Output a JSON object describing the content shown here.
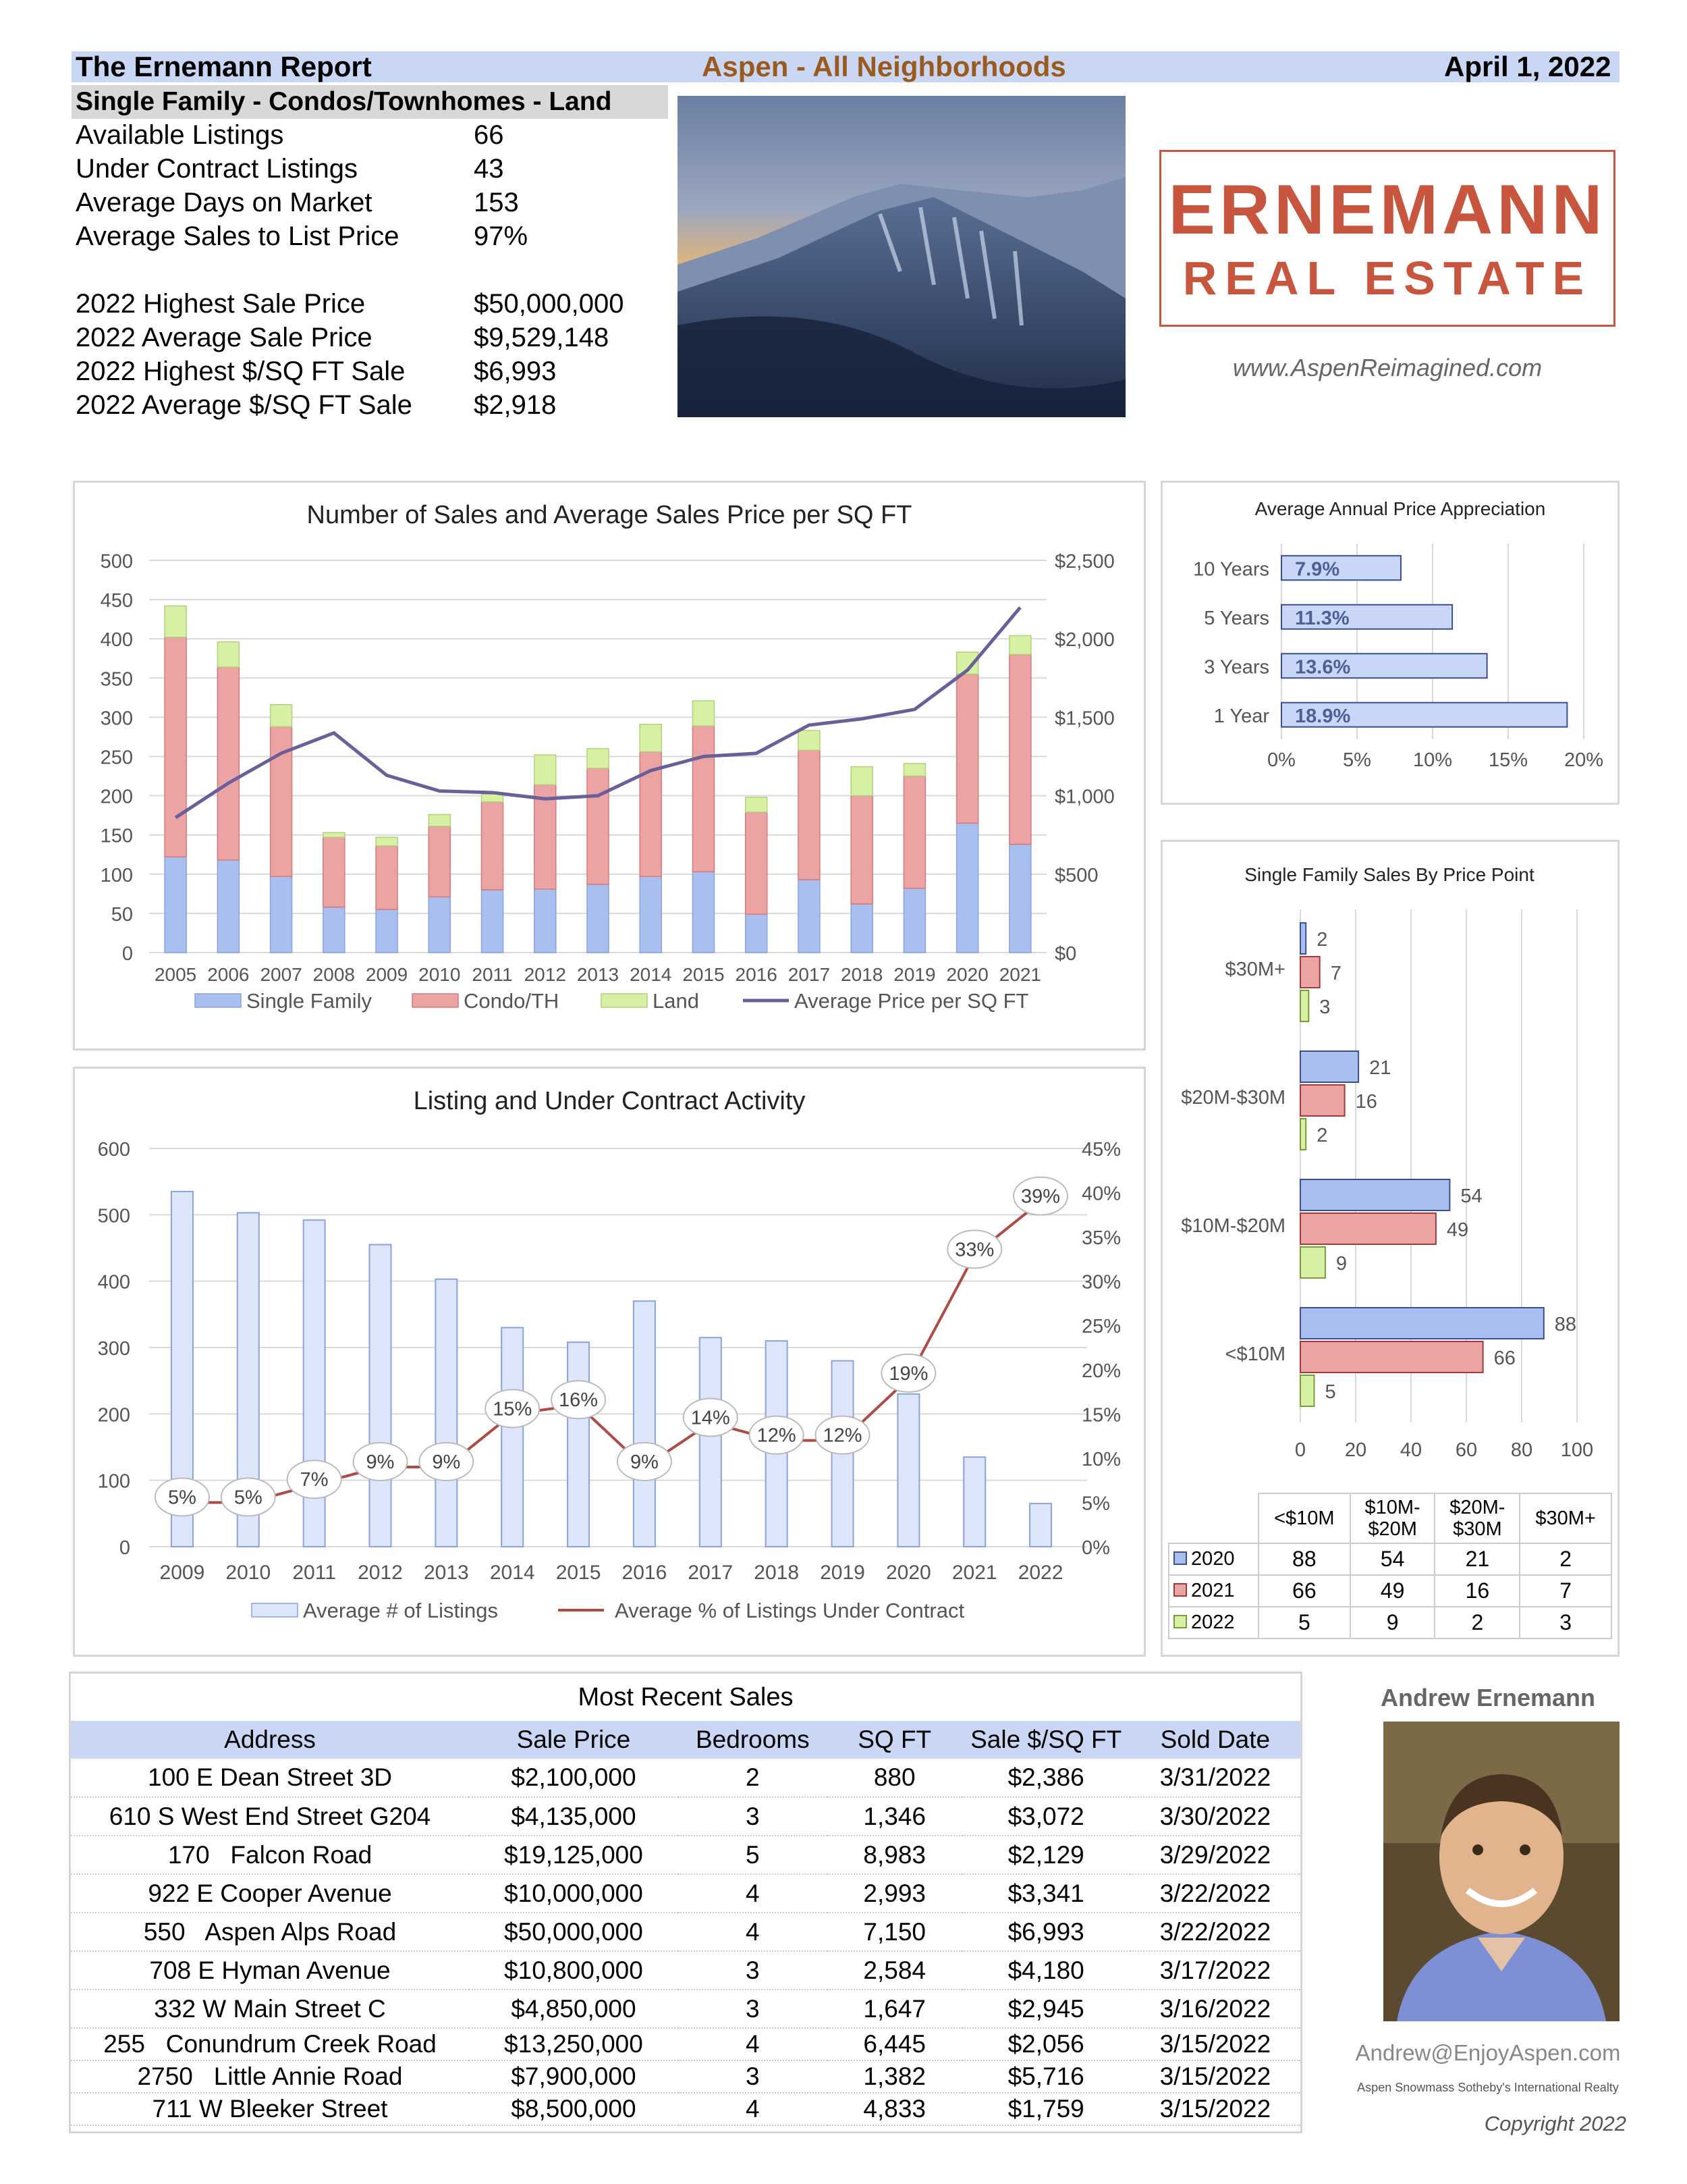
{
  "header": {
    "report_title": "The Ernemann Report",
    "area": "Aspen - All Neighborhoods",
    "date": "April 1, 2022",
    "subtitle": "Single Family - Condos/Townhomes - Land"
  },
  "stats": [
    {
      "label": "Available Listings",
      "value": "66"
    },
    {
      "label": "Under Contract Listings",
      "value": "43"
    },
    {
      "label": "Average Days on Market",
      "value": "153"
    },
    {
      "label": "Average Sales to List Price",
      "value": "97%"
    },
    {
      "label": "2022 Highest Sale Price",
      "value": "$50,000,000"
    },
    {
      "label": "2022 Average Sale Price",
      "value": "$9,529,148"
    },
    {
      "label": "2022 Highest $/SQ FT Sale",
      "value": "$6,993"
    },
    {
      "label": "2022 Average $/SQ FT Sale",
      "value": "$2,918"
    }
  ],
  "brand": {
    "logo_line1": "ERNEMANN",
    "logo_line2": "REAL ESTATE",
    "website": "www.AspenReimagined.com"
  },
  "agent": {
    "name": "Andrew Ernemann",
    "email": "Andrew@EnjoyAspen.com",
    "affiliation": "Aspen Snowmass Sotheby's International Realty",
    "copyright": "Copyright 2022"
  },
  "colors": {
    "single_family": "#a9bff0",
    "condo": "#eba3a3",
    "land": "#d6f0a4",
    "line": "#6b5f9a",
    "contract_line": "#b04a44",
    "header_band": "#c9d7f5",
    "brand": "#c8553d"
  },
  "chart_data": [
    {
      "type": "bar",
      "title": "Number of Sales and Average Sales Price per SQ FT",
      "categories": [
        "2005",
        "2006",
        "2007",
        "2008",
        "2009",
        "2010",
        "2011",
        "2012",
        "2013",
        "2014",
        "2015",
        "2016",
        "2017",
        "2018",
        "2019",
        "2020",
        "2021"
      ],
      "series": [
        {
          "name": "Single Family",
          "values": [
            122,
            118,
            97,
            58,
            55,
            71,
            80,
            81,
            87,
            97,
            103,
            49,
            93,
            62,
            82,
            165,
            138
          ]
        },
        {
          "name": "Condo/TH",
          "values": [
            280,
            246,
            191,
            89,
            81,
            90,
            112,
            133,
            148,
            159,
            186,
            130,
            165,
            138,
            143,
            190,
            242
          ]
        },
        {
          "name": "Land",
          "values": [
            40,
            32,
            28,
            6,
            11,
            15,
            10,
            38,
            25,
            35,
            32,
            19,
            25,
            37,
            16,
            28,
            24
          ]
        },
        {
          "name": "Average Price per SQ FT",
          "axis": "right",
          "values": [
            860,
            1080,
            1270,
            1400,
            1130,
            1030,
            1020,
            980,
            1000,
            1160,
            1250,
            1270,
            1450,
            1490,
            1550,
            1800,
            2200
          ]
        }
      ],
      "yticks": [
        "0",
        "50",
        "100",
        "150",
        "200",
        "250",
        "300",
        "350",
        "400",
        "450",
        "500"
      ],
      "y2ticks": [
        "$0",
        "$500",
        "$1,000",
        "$1,500",
        "$2,000",
        "$2,500"
      ],
      "ylim": [
        0,
        500
      ],
      "y2lim": [
        0,
        2500
      ],
      "grid": true,
      "legend": "bottom"
    },
    {
      "type": "bar",
      "title": "Listing and Under Contract Activity",
      "categories": [
        "2009",
        "2010",
        "2011",
        "2012",
        "2013",
        "2014",
        "2015",
        "2016",
        "2017",
        "2018",
        "2019",
        "2020",
        "2021",
        "2022"
      ],
      "series": [
        {
          "name": "Average # of Listings",
          "values": [
            535,
            503,
            492,
            455,
            403,
            330,
            308,
            370,
            315,
            310,
            280,
            230,
            135,
            65
          ]
        },
        {
          "name": "Average % of Listings Under Contract",
          "axis": "right",
          "values": [
            5,
            5,
            7,
            9,
            9,
            15,
            16,
            9,
            14,
            12,
            12,
            19,
            33,
            39
          ]
        }
      ],
      "point_labels": [
        "5%",
        "5%",
        "7%",
        "9%",
        "9%",
        "15%",
        "16%",
        "9%",
        "14%",
        "12%",
        "12%",
        "19%",
        "33%",
        "39%"
      ],
      "yticks": [
        "0",
        "100",
        "200",
        "300",
        "400",
        "500",
        "600"
      ],
      "y2ticks": [
        "0%",
        "5%",
        "10%",
        "15%",
        "20%",
        "25%",
        "30%",
        "35%",
        "40%",
        "45%"
      ],
      "ylim": [
        0,
        600
      ],
      "y2lim": [
        0,
        45
      ],
      "grid": true,
      "legend": "bottom"
    },
    {
      "type": "bar",
      "title": "Average Annual Price Appreciation",
      "categories": [
        "10 Years",
        "5 Years",
        "3 Years",
        "1 Year"
      ],
      "values": [
        7.9,
        11.3,
        13.6,
        18.9
      ],
      "labels": [
        "7.9%",
        "11.3%",
        "13.6%",
        "18.9%"
      ],
      "xticks": [
        "0%",
        "5%",
        "10%",
        "15%",
        "20%"
      ],
      "xlim": [
        0,
        20
      ],
      "grid": true
    },
    {
      "type": "bar",
      "title": "Single Family Sales By Price Point",
      "categories": [
        "$30M+",
        "$20M-$30M",
        "$10M-$20M",
        "<$10M"
      ],
      "series": [
        {
          "name": "2020",
          "values": [
            2,
            21,
            54,
            88
          ]
        },
        {
          "name": "2021",
          "values": [
            7,
            16,
            49,
            66
          ]
        },
        {
          "name": "2022",
          "values": [
            3,
            2,
            9,
            5
          ]
        }
      ],
      "xticks": [
        "0",
        "20",
        "40",
        "60",
        "80",
        "100"
      ],
      "xlim": [
        0,
        100
      ],
      "grid": true,
      "table": {
        "columns": [
          "<$10M",
          "$10M-\n$20M",
          "$20M-\n$30M",
          "$30M+"
        ],
        "rows": [
          {
            "label": "2020",
            "cells": [
              "88",
              "54",
              "21",
              "2"
            ]
          },
          {
            "label": "2021",
            "cells": [
              "66",
              "49",
              "16",
              "7"
            ]
          },
          {
            "label": "2022",
            "cells": [
              "5",
              "9",
              "2",
              "3"
            ]
          }
        ]
      }
    }
  ],
  "sales": {
    "title": "Most Recent Sales",
    "columns": [
      "Address",
      "Sale Price",
      "Bedrooms",
      "SQ FT",
      "Sale $/SQ FT",
      "Sold Date"
    ],
    "rows": [
      [
        "100 E Dean Street 3D",
        "$2,100,000",
        "2",
        "880",
        "$2,386",
        "3/31/2022"
      ],
      [
        "610 S West End Street G204",
        "$4,135,000",
        "3",
        "1,346",
        "$3,072",
        "3/30/2022"
      ],
      [
        "170   Falcon Road",
        "$19,125,000",
        "5",
        "8,983",
        "$2,129",
        "3/29/2022"
      ],
      [
        "922 E Cooper Avenue",
        "$10,000,000",
        "4",
        "2,993",
        "$3,341",
        "3/22/2022"
      ],
      [
        "550   Aspen Alps Road",
        "$50,000,000",
        "4",
        "7,150",
        "$6,993",
        "3/22/2022"
      ],
      [
        "708 E Hyman Avenue",
        "$10,800,000",
        "3",
        "2,584",
        "$4,180",
        "3/17/2022"
      ],
      [
        "332 W Main Street C",
        "$4,850,000",
        "3",
        "1,647",
        "$2,945",
        "3/16/2022"
      ],
      [
        "255   Conundrum Creek Road",
        "$13,250,000",
        "4",
        "6,445",
        "$2,056",
        "3/15/2022"
      ],
      [
        "2750   Little Annie Road",
        "$7,900,000",
        "3",
        "1,382",
        "$5,716",
        "3/15/2022"
      ],
      [
        "711 W Bleeker Street",
        "$8,500,000",
        "4",
        "4,833",
        "$1,759",
        "3/15/2022"
      ]
    ]
  }
}
